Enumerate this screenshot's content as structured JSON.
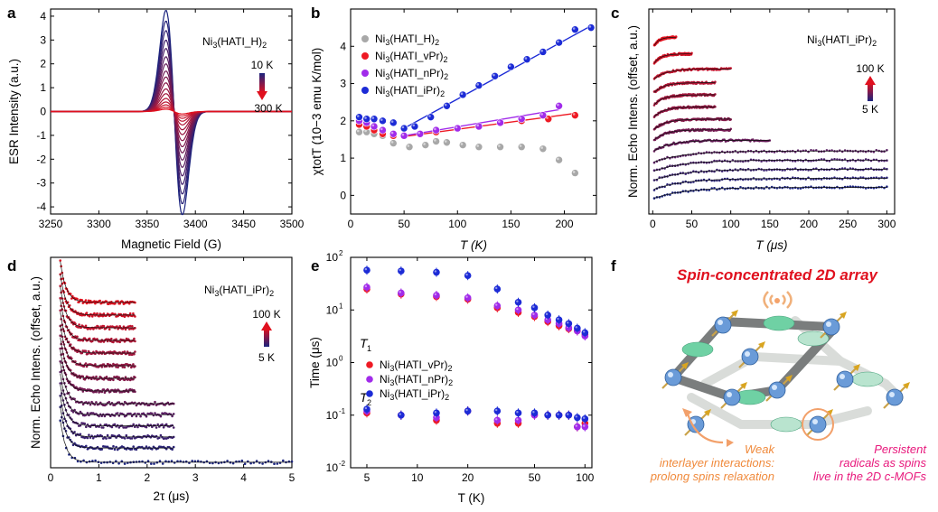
{
  "colors": {
    "blue": "#1c2bd6",
    "red": "#ee1a24",
    "purple": "#a12bea",
    "gray": "#a8a8a8",
    "navy": "#1a237e",
    "crimson": "#e0101e",
    "orange": "#f08a3c",
    "pink": "#e8187c",
    "green": "#6fd1a4"
  },
  "panel_labels": [
    "a",
    "b",
    "c",
    "d",
    "e",
    "f"
  ],
  "panel_a": {
    "legend": "Ni3(HATI_H)2",
    "arrow_top": "10 K",
    "arrow_bottom": "300 K"
  },
  "panel_b": {
    "legend": [
      "Ni3(HATI_H)2",
      "Ni3(HATI_vPr)2",
      "Ni3(HATI_nPr)2",
      "Ni3(HATI_iPr)2"
    ]
  },
  "panel_c": {
    "legend": "Ni3(HATI_iPr)2",
    "arrow_top": "100 K",
    "arrow_bottom": "5 K"
  },
  "panel_d": {
    "legend": "Ni3(HATI_iPr)2",
    "arrow_top": "100 K",
    "arrow_bottom": "5 K"
  },
  "panel_e": {
    "t1_label": "T1",
    "t2_label": "T2",
    "legend": [
      "Ni3(HATI_vPr)2",
      "Ni3(HATI_nPr)2",
      "Ni3(HATI_iPr)2"
    ]
  },
  "panel_f": {
    "title": "Spin-concentrated 2D array",
    "left_caption": [
      "Weak",
      "interlayer interactions:",
      "prolong spins relaxation"
    ],
    "right_caption": [
      "Persistent",
      "radicals as spins",
      "live in the 2D c-MOFs"
    ]
  },
  "chart_data": [
    {
      "id": "a",
      "type": "line",
      "xlabel": "Magnetic Field (G)",
      "ylabel": "ESR Intensity (a.u.)",
      "xlim": [
        3250,
        3500
      ],
      "ylim": [
        -4.3,
        4.3
      ],
      "xticks": [
        3250,
        3300,
        3350,
        3400,
        3450,
        3500
      ],
      "yticks": [
        -4,
        -3,
        -2,
        -1,
        0,
        1,
        2,
        3,
        4
      ],
      "center": 3378,
      "width": 8.5,
      "amplitudes": [
        4.25,
        3.8,
        3.4,
        3.0,
        2.65,
        2.3,
        2.0,
        1.7,
        1.45,
        1.2,
        0.95,
        0.75,
        0.55,
        0.4,
        0.28,
        0.18,
        0.1
      ]
    },
    {
      "id": "b",
      "type": "scatter",
      "xlabel": "T (K)",
      "ylabel": "χtotT (10−3 emu K/mol)",
      "xlim": [
        0,
        230
      ],
      "ylim": [
        -0.5,
        5
      ],
      "xticks": [
        0,
        50,
        100,
        150,
        200
      ],
      "yticks": [
        0,
        1,
        2,
        3,
        4
      ],
      "series": [
        {
          "name": "Ni3(HATI_H)2",
          "x": [
            8,
            15,
            22,
            30,
            40,
            55,
            70,
            80,
            90,
            105,
            120,
            140,
            160,
            180,
            195,
            210
          ],
          "y": [
            1.7,
            1.7,
            1.65,
            1.6,
            1.4,
            1.3,
            1.35,
            1.45,
            1.42,
            1.35,
            1.3,
            1.3,
            1.3,
            1.25,
            0.95,
            0.6
          ]
        },
        {
          "name": "Ni3(HATI_vPr)2",
          "x": [
            8,
            15,
            22,
            30,
            40,
            50,
            65,
            80,
            100,
            120,
            140,
            160,
            185,
            210
          ],
          "y": [
            1.9,
            1.85,
            1.75,
            1.65,
            1.6,
            1.6,
            1.65,
            1.7,
            1.8,
            1.85,
            1.95,
            2.0,
            2.05,
            2.15
          ]
        },
        {
          "name": "Ni3(HATI_nPr)2",
          "x": [
            8,
            15,
            22,
            30,
            40,
            50,
            65,
            80,
            100,
            120,
            140,
            160,
            180,
            195
          ],
          "y": [
            2.0,
            1.95,
            1.85,
            1.75,
            1.65,
            1.6,
            1.65,
            1.75,
            1.8,
            1.85,
            1.95,
            2.05,
            2.15,
            2.4
          ]
        },
        {
          "name": "Ni3(HATI_iPr)2",
          "x": [
            8,
            15,
            22,
            30,
            40,
            50,
            60,
            75,
            90,
            105,
            120,
            135,
            150,
            165,
            180,
            195,
            210,
            225
          ],
          "y": [
            2.1,
            2.05,
            2.05,
            2.0,
            1.95,
            1.8,
            1.85,
            2.1,
            2.4,
            2.7,
            2.95,
            3.2,
            3.45,
            3.65,
            3.85,
            4.1,
            4.45,
            4.5
          ]
        }
      ]
    },
    {
      "id": "c",
      "type": "scatter",
      "xlabel": "T (μs)",
      "ylabel": "Norm. Echo Intens. (offset, a.u.)",
      "xlim": [
        -5,
        310
      ],
      "ylim": [
        0,
        13.5
      ],
      "xticks": [
        0,
        50,
        100,
        150,
        200,
        250,
        300
      ],
      "traces": [
        {
          "tmax": 300,
          "offset": 1.0
        },
        {
          "tmax": 300,
          "offset": 1.6
        },
        {
          "tmax": 300,
          "offset": 2.2
        },
        {
          "tmax": 300,
          "offset": 2.8
        },
        {
          "tmax": 300,
          "offset": 3.4
        },
        {
          "tmax": 150,
          "offset": 4.1
        },
        {
          "tmax": 100,
          "offset": 4.8
        },
        {
          "tmax": 100,
          "offset": 5.5
        },
        {
          "tmax": 80,
          "offset": 6.3
        },
        {
          "tmax": 80,
          "offset": 7.1
        },
        {
          "tmax": 80,
          "offset": 7.9
        },
        {
          "tmax": 100,
          "offset": 8.8
        },
        {
          "tmax": 50,
          "offset": 9.8
        },
        {
          "tmax": 30,
          "offset": 10.9
        }
      ]
    },
    {
      "id": "d",
      "type": "scatter",
      "xlabel": "2τ (μs)",
      "ylabel": "Norm. Echo Intens. (offset, a.u.)",
      "xlim": [
        0,
        5
      ],
      "ylim": [
        0,
        13.3
      ],
      "xticks": [
        0,
        1,
        2,
        3,
        4,
        5
      ],
      "traces": [
        {
          "tmax": 5.0,
          "offset": 0.0
        },
        {
          "tmax": 2.55,
          "offset": 0.9
        },
        {
          "tmax": 2.55,
          "offset": 1.6
        },
        {
          "tmax": 2.55,
          "offset": 2.3
        },
        {
          "tmax": 2.55,
          "offset": 3.0
        },
        {
          "tmax": 2.55,
          "offset": 3.7
        },
        {
          "tmax": 1.75,
          "offset": 4.5
        },
        {
          "tmax": 1.75,
          "offset": 5.3
        },
        {
          "tmax": 1.75,
          "offset": 6.1
        },
        {
          "tmax": 1.75,
          "offset": 6.9
        },
        {
          "tmax": 1.75,
          "offset": 7.7
        },
        {
          "tmax": 1.75,
          "offset": 8.5
        },
        {
          "tmax": 1.75,
          "offset": 9.3
        },
        {
          "tmax": 1.75,
          "offset": 10.1
        }
      ]
    },
    {
      "id": "e",
      "type": "scatter",
      "xlabel": "T (K)",
      "ylabel": "Time (μs)",
      "xscale": "log",
      "yscale": "log",
      "xlim": [
        4,
        110
      ],
      "ylim": [
        0.01,
        100
      ],
      "xticks": [
        5,
        10,
        20,
        50,
        100
      ],
      "yticks": [
        0.01,
        0.1,
        1,
        10,
        100
      ],
      "series": [
        {
          "name": "Ni3(HATI_vPr)2 T1",
          "x": [
            5,
            8,
            13,
            20,
            30,
            40,
            50,
            60,
            70,
            80,
            90,
            100
          ],
          "y": [
            25,
            20,
            18,
            16,
            11,
            9,
            7.5,
            6,
            5,
            4.4,
            4,
            3.4
          ]
        },
        {
          "name": "Ni3(HATI_nPr)2 T1",
          "x": [
            5,
            8,
            13,
            20,
            30,
            40,
            50,
            60,
            70,
            80,
            90,
            100
          ],
          "y": [
            27,
            21,
            19,
            17,
            12,
            10,
            8,
            6.5,
            5.5,
            4.6,
            4,
            3.2
          ]
        },
        {
          "name": "Ni3(HATI_iPr)2 T1",
          "x": [
            5,
            8,
            13,
            20,
            30,
            40,
            50,
            60,
            70,
            80,
            90,
            100
          ],
          "y": [
            57,
            55,
            52,
            45,
            25,
            14,
            11,
            8,
            6.5,
            5.5,
            4.5,
            3.7
          ]
        },
        {
          "name": "Ni3(HATI_vPr)2 T2",
          "x": [
            5,
            8,
            13,
            20,
            30,
            40,
            50,
            60,
            70,
            80,
            90,
            100
          ],
          "y": [
            0.11,
            0.1,
            0.08,
            0.12,
            0.07,
            0.07,
            0.1,
            0.1,
            0.1,
            0.1,
            0.06,
            0.07
          ]
        },
        {
          "name": "Ni3(HATI_nPr)2 T2",
          "x": [
            5,
            8,
            13,
            20,
            30,
            40,
            50,
            60,
            70,
            80,
            90,
            100
          ],
          "y": [
            0.12,
            0.1,
            0.09,
            0.12,
            0.08,
            0.08,
            0.1,
            0.1,
            0.1,
            0.1,
            0.06,
            0.06
          ]
        },
        {
          "name": "Ni3(HATI_iPr)2 T2",
          "x": [
            5,
            8,
            13,
            20,
            30,
            40,
            50,
            60,
            70,
            80,
            90,
            100
          ],
          "y": [
            0.13,
            0.1,
            0.11,
            0.12,
            0.12,
            0.11,
            0.11,
            0.1,
            0.1,
            0.1,
            0.09,
            0.085
          ]
        }
      ]
    }
  ]
}
